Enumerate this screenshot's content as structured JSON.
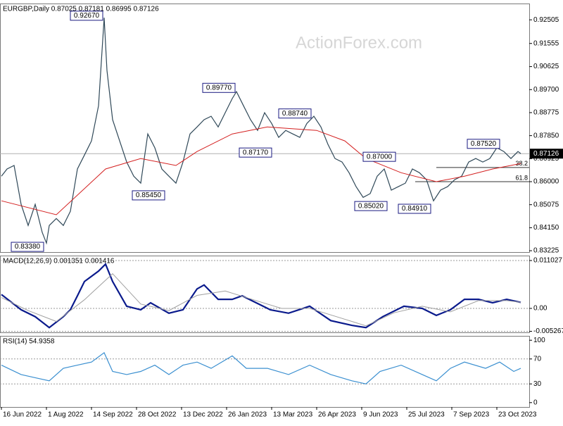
{
  "watermark": "ActionForex.com",
  "chart_data": [
    {
      "type": "line",
      "title": "EURGBP,Daily  0.87025 0.87181 0.86995 0.87126",
      "last_price": 0.87126,
      "xlim": [
        -1,
        375
      ],
      "ylim": [
        0.8317,
        0.9316
      ],
      "yticks": [
        0.92505,
        0.91555,
        0.90625,
        {
          "value": 0.897,
          "label": "0.89700"
        },
        0.88775,
        {
          "value": 0.8785,
          "label": "0.87850"
        },
        0.86925,
        {
          "value": 0.86,
          "label": "0.86000"
        },
        0.85075,
        {
          "value": 0.8415,
          "label": "0.84150"
        },
        0.83225
      ],
      "grid": false,
      "series": [
        {
          "color": "#2f4858",
          "x": [
            0,
            4,
            9,
            14,
            19,
            24,
            29,
            32,
            34,
            39,
            44,
            49,
            54,
            59,
            64,
            69,
            73,
            75,
            79,
            84,
            89,
            94,
            99,
            104,
            109,
            114,
            119,
            124,
            129,
            134,
            139,
            144,
            149,
            154,
            159,
            164,
            167,
            172,
            177,
            182,
            187,
            192,
            197,
            202,
            207,
            212,
            217,
            222,
            227,
            232,
            237,
            242,
            247,
            252,
            257,
            262,
            267,
            272,
            277,
            282,
            287,
            292,
            297,
            302,
            307,
            312,
            317,
            322,
            327,
            332,
            337,
            342,
            347,
            352,
            357,
            362,
            367,
            369
          ],
          "values": [
            0.8622,
            0.8651,
            0.8665,
            0.8509,
            0.8424,
            0.8509,
            0.8396,
            0.8353,
            0.8424,
            0.8452,
            0.8424,
            0.8481,
            0.8651,
            0.8707,
            0.8764,
            0.8905,
            0.9259,
            0.9047,
            0.8849,
            0.8764,
            0.8679,
            0.8622,
            0.8594,
            0.8792,
            0.8736,
            0.8651,
            0.8622,
            0.8594,
            0.8679,
            0.8792,
            0.882,
            0.8849,
            0.8863,
            0.882,
            0.8877,
            0.8934,
            0.8962,
            0.8905,
            0.8849,
            0.8806,
            0.8877,
            0.8834,
            0.8778,
            0.8806,
            0.8792,
            0.8778,
            0.8834,
            0.8863,
            0.882,
            0.875,
            0.8693,
            0.8679,
            0.8636,
            0.858,
            0.8537,
            0.8552,
            0.8622,
            0.8651,
            0.8566,
            0.858,
            0.8594,
            0.8651,
            0.8636,
            0.8608,
            0.8523,
            0.8566,
            0.858,
            0.8608,
            0.8622,
            0.8679,
            0.8693,
            0.8679,
            0.8693,
            0.8736,
            0.8721,
            0.8693,
            0.8721,
            0.8713
          ]
        },
        {
          "color": "#d42020",
          "x": [
            0,
            39,
            74,
            99,
            124,
            139,
            164,
            189,
            224,
            244,
            259,
            284,
            309,
            329,
            349,
            369
          ],
          "values": [
            0.8523,
            0.8467,
            0.8651,
            0.8693,
            0.8665,
            0.8721,
            0.8792,
            0.882,
            0.8806,
            0.8764,
            0.8693,
            0.8636,
            0.86,
            0.8622,
            0.8651,
            0.8673
          ]
        }
      ],
      "annotations": [
        {
          "text": "0.92670",
          "x": 73,
          "y": 0.9267
        },
        {
          "text": "0.89770",
          "x": 167,
          "y": 0.8977
        },
        {
          "text": "0.88740",
          "x": 221,
          "y": 0.8874
        },
        {
          "text": "0.87170",
          "x": 168,
          "y": 0.8717
        },
        {
          "text": "0.85450",
          "x": 117,
          "y": 0.8545
        },
        {
          "text": "0.83380",
          "x": 31,
          "y": 0.8338
        },
        {
          "text": "0.87000",
          "x": 281,
          "y": 0.87
        },
        {
          "text": "0.85020",
          "x": 275,
          "y": 0.8502
        },
        {
          "text": "0.84910",
          "x": 306,
          "y": 0.8491
        },
        {
          "text": "0.87520",
          "x": 355,
          "y": 0.8752
        }
      ],
      "levels": [
        {
          "label": "38.2",
          "value": 0.8657,
          "x": 309
        },
        {
          "label": "61.8",
          "value": 0.86,
          "x": 294
        }
      ]
    },
    {
      "type": "line",
      "title": "MACD(12,26,9) 0.001351 0.001416",
      "xlim": [
        -1,
        375
      ],
      "ylim": [
        -0.00551,
        0.01216
      ],
      "yticks": [
        0.011027,
        {
          "value": 0,
          "label": "0.00"
        },
        -0.005267
      ],
      "grid": true,
      "series": [
        {
          "color": "#0a1a8c",
          "x": [
            0,
            14,
            24,
            34,
            44,
            49,
            54,
            59,
            69,
            74,
            79,
            89,
            99,
            106,
            119,
            129,
            139,
            144,
            154,
            164,
            171,
            181,
            191,
            204,
            219,
            234,
            249,
            259,
            271,
            286,
            299,
            309,
            319,
            329,
            339,
            349,
            359,
            369
          ],
          "values": [
            0.0032,
            -0.0003,
            -0.0019,
            -0.0044,
            -0.0019,
            -0.0003,
            0.0029,
            0.0062,
            0.0086,
            0.0102,
            0.0062,
            0.0005,
            -0.0003,
            0.0013,
            -0.0011,
            -0.0003,
            0.0045,
            0.0054,
            0.0021,
            0.0021,
            0.0029,
            0.0013,
            -0.0003,
            -0.0011,
            0.0005,
            -0.0028,
            -0.0039,
            -0.0044,
            -0.0019,
            0.0005,
            0,
            -0.0016,
            -0.0003,
            0.0021,
            0.0021,
            0.0013,
            0.0021,
            0.0014
          ]
        },
        {
          "color": "#a0a0a0",
          "x": [
            0,
            19,
            39,
            59,
            79,
            99,
            119,
            139,
            159,
            179,
            199,
            219,
            239,
            259,
            279,
            299,
            319,
            339,
            359,
            369
          ],
          "values": [
            0.0025,
            -0.0005,
            -0.003,
            0.002,
            0.008,
            0.001,
            -0.0005,
            0.003,
            0.004,
            0.002,
            0,
            0,
            -0.002,
            -0.004,
            -0.001,
            0.0005,
            -0.0008,
            0.0018,
            0.0018,
            0.0014
          ]
        }
      ]
    },
    {
      "type": "line",
      "title": "RSI(14) 54.9358",
      "xlim": [
        -1,
        375
      ],
      "ylim": [
        -7,
        107
      ],
      "yticks": [
        100,
        70,
        30,
        0
      ],
      "grid": true,
      "xticks": [
        {
          "value": 0,
          "label": "16 Jun 2022"
        },
        {
          "value": 32,
          "label": "1 Aug 2022"
        },
        {
          "value": 64,
          "label": "14 Sep 2022"
        },
        {
          "value": 96,
          "label": "28 Oct 2022"
        },
        {
          "value": 128,
          "label": "13 Dec 2022"
        },
        {
          "value": 160,
          "label": "26 Jan 2023"
        },
        {
          "value": 192,
          "label": "13 Mar 2023"
        },
        {
          "value": 224,
          "label": "26 Apr 2023"
        },
        {
          "value": 256,
          "label": "9 Jun 2023"
        },
        {
          "value": 288,
          "label": "25 Jul 2023"
        },
        {
          "value": 320,
          "label": "7 Sep 2023"
        },
        {
          "value": 352,
          "label": "23 Oct 2023"
        }
      ],
      "series": [
        {
          "color": "#3a8fd0",
          "x": [
            0,
            14,
            24,
            34,
            44,
            54,
            64,
            73,
            79,
            89,
            99,
            109,
            119,
            129,
            139,
            149,
            164,
            174,
            189,
            204,
            219,
            234,
            249,
            259,
            269,
            284,
            299,
            309,
            319,
            329,
            344,
            354,
            364,
            369
          ],
          "values": [
            60,
            45,
            40,
            35,
            55,
            60,
            65,
            80,
            50,
            45,
            50,
            60,
            45,
            60,
            65,
            55,
            75,
            55,
            55,
            45,
            60,
            45,
            35,
            30,
            50,
            60,
            45,
            35,
            55,
            65,
            55,
            65,
            50,
            55
          ]
        }
      ]
    }
  ]
}
